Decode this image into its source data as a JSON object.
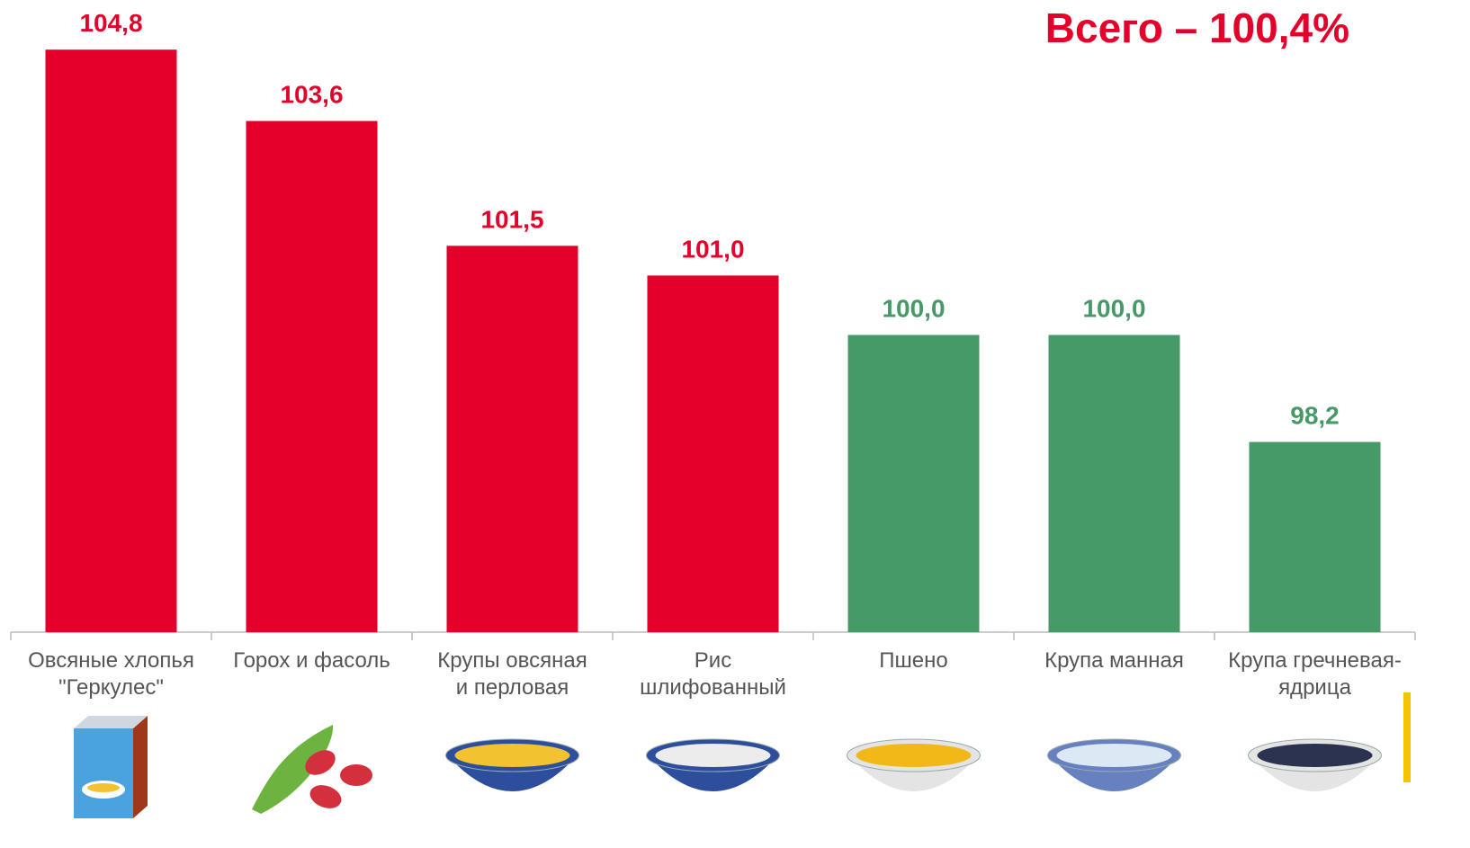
{
  "chart_data": {
    "type": "bar",
    "title": "Всего – 100,4%",
    "categories": [
      "Овсяные хлопья\n\"Геркулес\"",
      "Горох и фасоль",
      "Крупы овсяная\nи перловая",
      "Рис\nшлифованный",
      "Пшено",
      "Крупа манная",
      "Крупа гречневая-\nядрица"
    ],
    "values": [
      104.8,
      103.6,
      101.5,
      101.0,
      100.0,
      100.0,
      98.2
    ],
    "value_labels": [
      "104,8",
      "103,6",
      "101,5",
      "101,0",
      "100,0",
      "100,0",
      "98,2"
    ],
    "colors": [
      "#e4002b",
      "#e4002b",
      "#e4002b",
      "#e4002b",
      "#459a67",
      "#459a67",
      "#459a67"
    ],
    "ylim": [
      95,
      105
    ]
  }
}
